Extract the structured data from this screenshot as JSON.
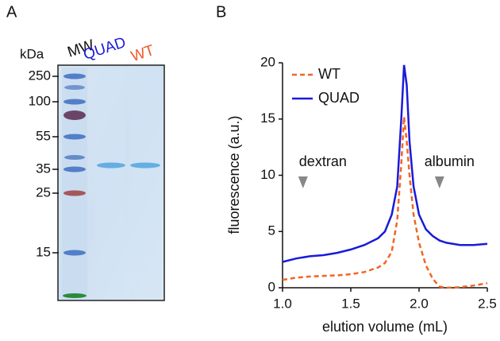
{
  "panel_a": {
    "label": "A",
    "unit": "kDa",
    "lanes": [
      {
        "name": "MW",
        "color": "#111111"
      },
      {
        "name": "QUAD",
        "color": "#1a1adb"
      },
      {
        "name": "WT",
        "color": "#ee5a2a"
      }
    ],
    "markers": [
      250,
      100,
      55,
      35,
      25,
      15
    ]
  },
  "chart_data": {
    "type": "line",
    "panel_label": "B",
    "x_label": "elution volume (mL)",
    "y_label": "fluorescence (a.u.)",
    "x": [
      1.0,
      1.1,
      1.2,
      1.3,
      1.4,
      1.5,
      1.6,
      1.7,
      1.75,
      1.8,
      1.84,
      1.87,
      1.89,
      1.91,
      1.93,
      1.96,
      2.0,
      2.05,
      2.1,
      2.15,
      2.2,
      2.3,
      2.4,
      2.5
    ],
    "series": [
      {
        "name": "WT",
        "color": "#f26522",
        "dashed": true,
        "values": [
          0.7,
          0.9,
          1.0,
          1.05,
          1.1,
          1.2,
          1.4,
          1.8,
          2.2,
          3.2,
          6,
          11,
          15.2,
          13,
          10,
          6.5,
          4,
          2,
          0.8,
          0.1,
          0,
          0.05,
          0.2,
          0.4
        ]
      },
      {
        "name": "QUAD",
        "color": "#1a1adb",
        "dashed": false,
        "values": [
          2.3,
          2.6,
          2.8,
          2.9,
          3.1,
          3.4,
          3.8,
          4.4,
          5.0,
          6.5,
          9,
          15,
          19.8,
          18,
          13,
          9,
          6.5,
          5.2,
          4.6,
          4.2,
          4.0,
          3.8,
          3.8,
          3.9
        ]
      }
    ],
    "xlim": [
      1.0,
      2.5
    ],
    "xticks": [
      {
        "value": 1.0,
        "label": "1.0"
      },
      {
        "value": 1.5,
        "label": "1.5"
      },
      {
        "value": 2.0,
        "label": "2.0"
      },
      {
        "value": 2.5,
        "label": "2.5"
      }
    ],
    "ylim": [
      0,
      20
    ],
    "yticks": [
      0,
      5,
      10,
      15,
      20
    ],
    "annotations": [
      {
        "text": "dextran",
        "x": 1.15
      },
      {
        "text": "albumin",
        "x": 2.15
      }
    ],
    "legend": "upper left"
  }
}
